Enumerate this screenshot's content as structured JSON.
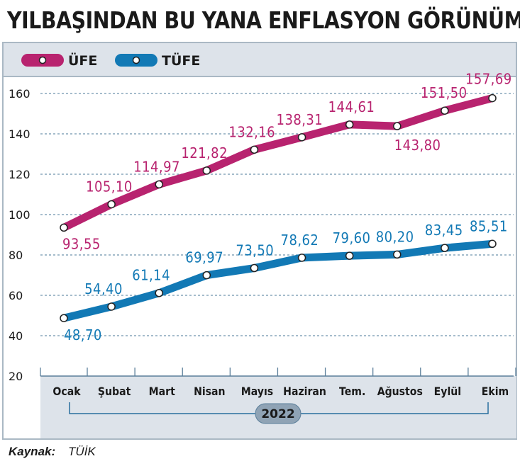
{
  "title": "YILBAŞINDAN BU YANA ENFLASYON GÖRÜNÜMÜ",
  "colors": {
    "ufe": "#b8236f",
    "tufe": "#1279b5",
    "panel": "#dde3ea",
    "grid": "#6f93ad",
    "year_badge": "#8fa3b5"
  },
  "chart_data": {
    "type": "line",
    "title": "YILBAŞINDAN BU YANA ENFLASYON GÖRÜNÜMÜ",
    "categories": [
      "Ocak",
      "Şubat",
      "Mart",
      "Nisan",
      "Mayıs",
      "Haziran",
      "Tem.",
      "Ağustos",
      "Eylül",
      "Ekim"
    ],
    "series": [
      {
        "name": "ÜFE",
        "values": [
          93.55,
          105.1,
          114.97,
          121.82,
          132.16,
          138.31,
          144.61,
          143.8,
          151.5,
          157.69
        ],
        "labels": [
          "93,55",
          "105,10",
          "114,97",
          "121,82",
          "132,16",
          "138,31",
          "144,61",
          "143,80",
          "151,50",
          "157,69"
        ]
      },
      {
        "name": "TÜFE",
        "values": [
          48.7,
          54.4,
          61.14,
          69.97,
          73.5,
          78.62,
          79.6,
          80.2,
          83.45,
          85.51
        ],
        "labels": [
          "48,70",
          "54,40",
          "61,14",
          "69,97",
          "73,50",
          "78,62",
          "79,60",
          "80,20",
          "83,45",
          "85,51"
        ]
      }
    ],
    "y_ticks": [
      20,
      40,
      60,
      80,
      100,
      120,
      140,
      160
    ],
    "ylim": [
      20,
      160
    ],
    "year_label": "2022",
    "legend_position": "top-left",
    "grid": true
  },
  "source": {
    "label": "Kaynak:",
    "value": "TÜİK"
  }
}
